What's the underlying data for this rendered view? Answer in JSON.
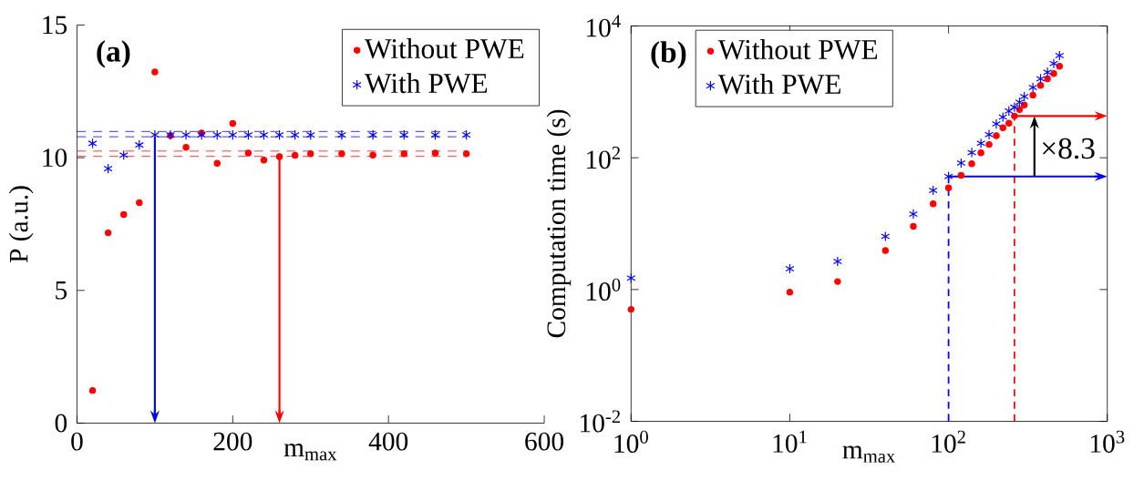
{
  "chart_data": [
    {
      "type": "scatter",
      "xlabel": "m$_{max}$",
      "ylabel": "P (a.u.)",
      "xlim": [
        0,
        600
      ],
      "ylim": [
        0,
        15
      ],
      "xticks": [
        0,
        200,
        400,
        600
      ],
      "yticks": [
        0,
        5,
        10,
        15
      ],
      "legend": "top right",
      "grid": false,
      "annotations": [
        "(a)"
      ],
      "x": [
        20,
        40,
        60,
        80,
        100,
        120,
        140,
        160,
        180,
        200,
        220,
        240,
        260,
        280,
        300,
        340,
        380,
        420,
        460,
        500
      ],
      "series": [
        {
          "name": "Without PWE",
          "color": "#ff0000",
          "marker": "circle",
          "values": [
            1.23,
            7.17,
            7.86,
            8.31,
            13.23,
            10.84,
            10.39,
            10.93,
            9.79,
            11.29,
            10.18,
            9.91,
            10.04,
            10.09,
            10.15,
            10.15,
            10.1,
            10.15,
            10.18,
            10.15
          ]
        },
        {
          "name": "With PWE",
          "color": "#0000ff",
          "marker": "cross",
          "values": [
            10.54,
            9.59,
            10.1,
            10.48,
            10.86,
            10.86,
            10.86,
            10.86,
            10.86,
            10.86,
            10.86,
            10.86,
            10.86,
            10.86,
            10.86,
            10.86,
            10.86,
            10.86,
            10.86,
            10.86
          ]
        }
      ],
      "ref_lines": [
        {
          "axis": "y",
          "value": 10.99,
          "color": "#0000ff",
          "line_style": "dashed"
        },
        {
          "axis": "y",
          "value": 10.79,
          "color": "#0000ff",
          "line_style": "dashed"
        },
        {
          "axis": "y",
          "value": 10.25,
          "color": "#ff0000",
          "line_style": "dashed"
        },
        {
          "axis": "y",
          "value": 10.05,
          "color": "#ff0000",
          "line_style": "dashed"
        },
        {
          "axis": "x",
          "value": 100,
          "color": "#0000ff",
          "line_style": "solid"
        },
        {
          "axis": "x",
          "value": 260,
          "color": "#ff0000",
          "line_style": "solid"
        }
      ]
    },
    {
      "type": "scatter",
      "xlabel": "m$_{max}$",
      "ylabel": "Computation time (s)",
      "log": "xy",
      "xlim": [
        1,
        1000
      ],
      "ylim": [
        0.01,
        10000
      ],
      "legend": "top left",
      "grid": false,
      "xticks": [
        {
          "value": 1,
          "label": "10$^{0}$"
        },
        {
          "value": 10,
          "label": "10$^{1}$"
        },
        {
          "value": 100,
          "label": "10$^{2}$"
        },
        {
          "value": 1000,
          "label": "10$^{3}$"
        }
      ],
      "yticks": [
        {
          "value": 0.01,
          "label": "10$^{-2}$"
        },
        {
          "value": 1,
          "label": "10$^{0}$"
        },
        {
          "value": 100,
          "label": "10$^{2}$"
        },
        {
          "value": 10000,
          "label": "10$^{4}$"
        }
      ],
      "annotations": [
        "(b)",
        "×8.3"
      ],
      "x": [
        1,
        10,
        20,
        40,
        60,
        80,
        100,
        120,
        140,
        160,
        180,
        200,
        220,
        240,
        260,
        280,
        300,
        340,
        380,
        420,
        460,
        500
      ],
      "series": [
        {
          "name": "Without PWE",
          "color": "#ff0000",
          "marker": "circle",
          "values": [
            0.5,
            0.91,
            1.32,
            3.9,
            9.1,
            20,
            35,
            54,
            81,
            119,
            159,
            216,
            285,
            334,
            430,
            540,
            633,
            893,
            1250,
            1580,
            1900,
            2450
          ]
        },
        {
          "name": "With PWE",
          "color": "#0000ff",
          "marker": "cross",
          "values": [
            1.49,
            2.07,
            2.67,
            6.4,
            14,
            32,
            52,
            83,
            120,
            166,
            225,
            326,
            414,
            512,
            585,
            695,
            848,
            1165,
            1580,
            1980,
            2690,
            3550
          ]
        }
      ],
      "ref_lines": [
        {
          "axis": "x",
          "value": 100,
          "color": "#0000ff",
          "line_style": "dashed"
        },
        {
          "axis": "x",
          "value": 260,
          "color": "#ff0000",
          "line_style": "dashed"
        },
        {
          "axis": "y",
          "value": 52,
          "color": "#0000ff",
          "line_style": "solid"
        },
        {
          "axis": "y",
          "value": 430,
          "color": "#ff0000",
          "line_style": "solid"
        }
      ]
    }
  ]
}
